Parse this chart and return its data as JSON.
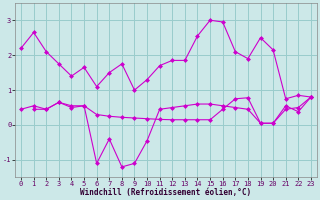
{
  "xlabel": "Windchill (Refroidissement éolien,°C)",
  "bg_color": "#cce8e8",
  "line_color": "#cc00cc",
  "grid_color": "#99cccc",
  "xlim": [
    -0.5,
    23.5
  ],
  "ylim": [
    -1.5,
    3.5
  ],
  "yticks": [
    -1,
    0,
    1,
    2,
    3
  ],
  "xticks": [
    0,
    1,
    2,
    3,
    4,
    5,
    6,
    7,
    8,
    9,
    10,
    11,
    12,
    13,
    14,
    15,
    16,
    17,
    18,
    19,
    20,
    21,
    22,
    23
  ],
  "line1_x": [
    0,
    1,
    2,
    3,
    4,
    5,
    6,
    7,
    8,
    9,
    10,
    11,
    12,
    13,
    14,
    15,
    16,
    17,
    18,
    19,
    20,
    21,
    22,
    23
  ],
  "line1_y": [
    2.2,
    2.65,
    2.1,
    1.75,
    1.4,
    1.65,
    1.1,
    1.5,
    1.75,
    1.0,
    1.3,
    1.7,
    1.85,
    1.85,
    2.55,
    3.0,
    2.95,
    2.1,
    1.9,
    2.5,
    2.15,
    0.75,
    0.85,
    0.8
  ],
  "line2_x": [
    1,
    2,
    3,
    4,
    5,
    6,
    7,
    8,
    9,
    10,
    11,
    12,
    13,
    14,
    15,
    16,
    17,
    18,
    19,
    20,
    21,
    22,
    23
  ],
  "line2_y": [
    0.45,
    0.45,
    0.65,
    0.5,
    0.55,
    -1.1,
    -0.4,
    -1.2,
    -1.1,
    -0.45,
    0.45,
    0.5,
    0.55,
    0.6,
    0.6,
    0.55,
    0.5,
    0.45,
    0.05,
    0.05,
    0.45,
    0.5,
    0.8
  ],
  "line3_x": [
    0,
    1,
    2,
    3,
    4,
    5,
    6,
    7,
    8,
    9,
    10,
    11,
    12,
    13,
    14,
    15,
    16,
    17,
    18,
    19,
    20,
    21,
    22,
    23
  ],
  "line3_y": [
    0.45,
    0.55,
    0.45,
    0.65,
    0.55,
    0.55,
    0.3,
    0.25,
    0.22,
    0.2,
    0.18,
    0.16,
    0.15,
    0.15,
    0.15,
    0.15,
    0.45,
    0.75,
    0.78,
    0.05,
    0.05,
    0.55,
    0.38,
    0.8
  ]
}
